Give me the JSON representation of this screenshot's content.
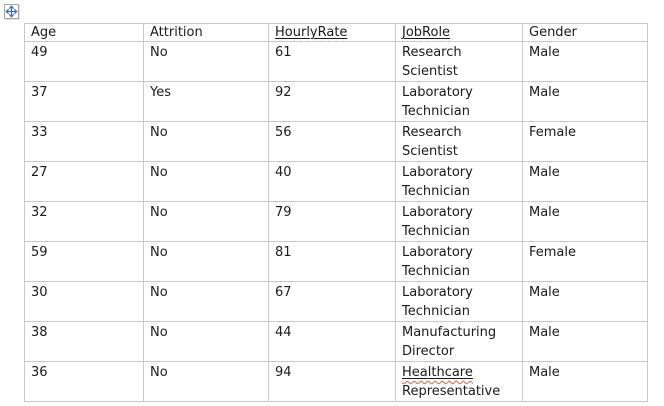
{
  "page": {
    "background_color": "#ffffff",
    "text_color": "#1b1b1b",
    "border_color": "#c9c9c9",
    "squiggle_color": "#e8604f",
    "handle_arrow_color": "#3a6cb4"
  },
  "move_handle": {
    "icon": "move-cross-icon"
  },
  "table": {
    "columns": [
      {
        "key": "age",
        "label": "Age",
        "flagged": false
      },
      {
        "key": "attrition",
        "label": "Attrition",
        "flagged": false
      },
      {
        "key": "hourlyrate",
        "label": "HourlyRate",
        "flagged": true
      },
      {
        "key": "jobrole",
        "label": "JobRole",
        "flagged": true
      },
      {
        "key": "gender",
        "label": "Gender",
        "flagged": false
      }
    ],
    "rows": [
      {
        "age": "49",
        "attrition": "No",
        "hourlyrate": "61",
        "jobrole": [
          {
            "text": "Research Scientist",
            "flagged": false
          }
        ],
        "gender": "Male"
      },
      {
        "age": "37",
        "attrition": "Yes",
        "hourlyrate": "92",
        "jobrole": [
          {
            "text": "Laboratory Technician",
            "flagged": false
          }
        ],
        "gender": "Male"
      },
      {
        "age": "33",
        "attrition": "No",
        "hourlyrate": "56",
        "jobrole": [
          {
            "text": "Research Scientist",
            "flagged": false
          }
        ],
        "gender": "Female"
      },
      {
        "age": "27",
        "attrition": "No",
        "hourlyrate": "40",
        "jobrole": [
          {
            "text": "Laboratory Technician",
            "flagged": false
          }
        ],
        "gender": "Male"
      },
      {
        "age": "32",
        "attrition": "No",
        "hourlyrate": "79",
        "jobrole": [
          {
            "text": "Laboratory Technician",
            "flagged": false
          }
        ],
        "gender": "Male"
      },
      {
        "age": "59",
        "attrition": "No",
        "hourlyrate": "81",
        "jobrole": [
          {
            "text": "Laboratory Technician",
            "flagged": false
          }
        ],
        "gender": "Female"
      },
      {
        "age": "30",
        "attrition": "No",
        "hourlyrate": "67",
        "jobrole": [
          {
            "text": "Laboratory Technician",
            "flagged": false
          }
        ],
        "gender": "Male"
      },
      {
        "age": "38",
        "attrition": "No",
        "hourlyrate": "44",
        "jobrole": [
          {
            "text": "Manufacturing Director",
            "flagged": false
          }
        ],
        "gender": "Male"
      },
      {
        "age": "36",
        "attrition": "No",
        "hourlyrate": "94",
        "jobrole": [
          {
            "text": "Healthcare",
            "flagged": true
          },
          {
            "text": " Representative",
            "flagged": false
          }
        ],
        "gender": "Male"
      }
    ]
  }
}
